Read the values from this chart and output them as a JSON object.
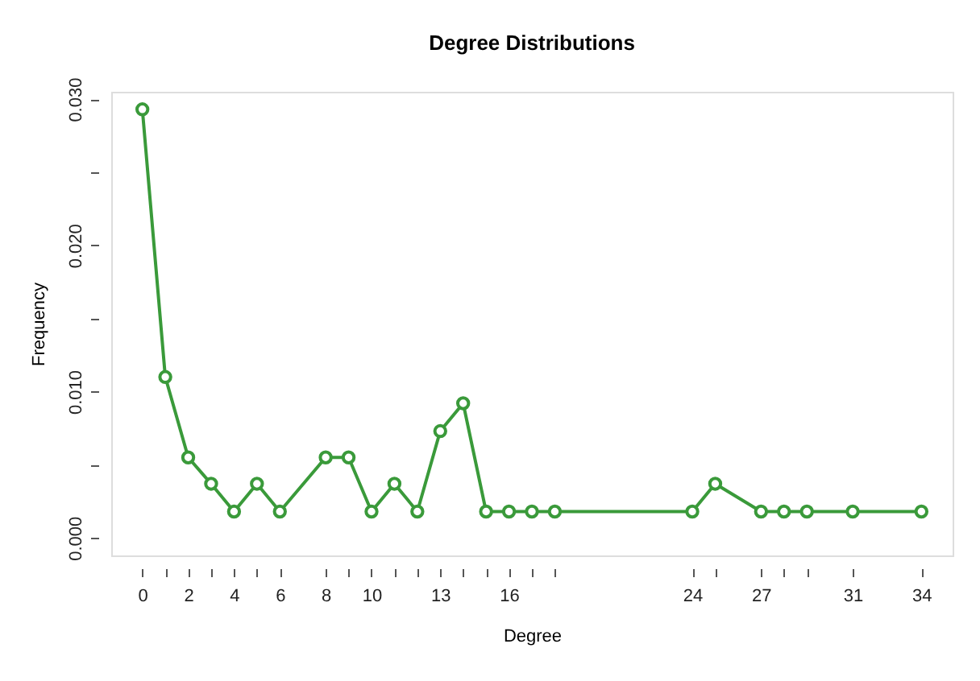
{
  "chart_data": {
    "type": "line",
    "title": "Degree Distributions",
    "xlabel": "Degree",
    "ylabel": "Frequency",
    "x": [
      0,
      1,
      2,
      3,
      4,
      5,
      6,
      8,
      9,
      10,
      11,
      12,
      13,
      14,
      15,
      16,
      17,
      18,
      24,
      25,
      27,
      28,
      29,
      31,
      34
    ],
    "series": [
      {
        "color": "#3a9a3a",
        "values": [
          0.0293,
          0.011,
          0.0055,
          0.0037,
          0.0018,
          0.0037,
          0.0018,
          0.0055,
          0.0055,
          0.0018,
          0.0037,
          0.0018,
          0.0073,
          0.0092,
          0.0018,
          0.0018,
          0.0018,
          0.0018,
          0.0018,
          0.0037,
          0.0018,
          0.0018,
          0.0018,
          0.0018,
          0.0018
        ]
      }
    ],
    "xlim": [
      -1.36,
      35.36
    ],
    "ylim": [
      -0.0012,
      0.0305
    ],
    "xticks": [
      0,
      {
        "value": 1,
        "label": null
      },
      2,
      {
        "value": 3,
        "label": null
      },
      4,
      {
        "value": 5,
        "label": null
      },
      6,
      8,
      {
        "value": 9,
        "label": null
      },
      10,
      {
        "value": 11,
        "label": null
      },
      {
        "value": 12,
        "label": null
      },
      13,
      {
        "value": 14,
        "label": null
      },
      {
        "value": 15,
        "label": null
      },
      16,
      {
        "value": 17,
        "label": null
      },
      {
        "value": 18,
        "label": null
      },
      24,
      {
        "value": 25,
        "label": null
      },
      27,
      {
        "value": 28,
        "label": null
      },
      {
        "value": 29,
        "label": null
      },
      31,
      34
    ],
    "yticks": [
      {
        "value": 0,
        "label": "0.000"
      },
      {
        "value": 0.005,
        "label": null
      },
      {
        "value": 0.01,
        "label": "0.010"
      },
      {
        "value": 0.015,
        "label": null
      },
      {
        "value": 0.02,
        "label": "0.020"
      },
      {
        "value": 0.025,
        "label": null
      },
      {
        "value": 0.03,
        "label": "0.030"
      }
    ],
    "marker": "circle",
    "line_style": "solid",
    "grid": false,
    "legend": false
  }
}
